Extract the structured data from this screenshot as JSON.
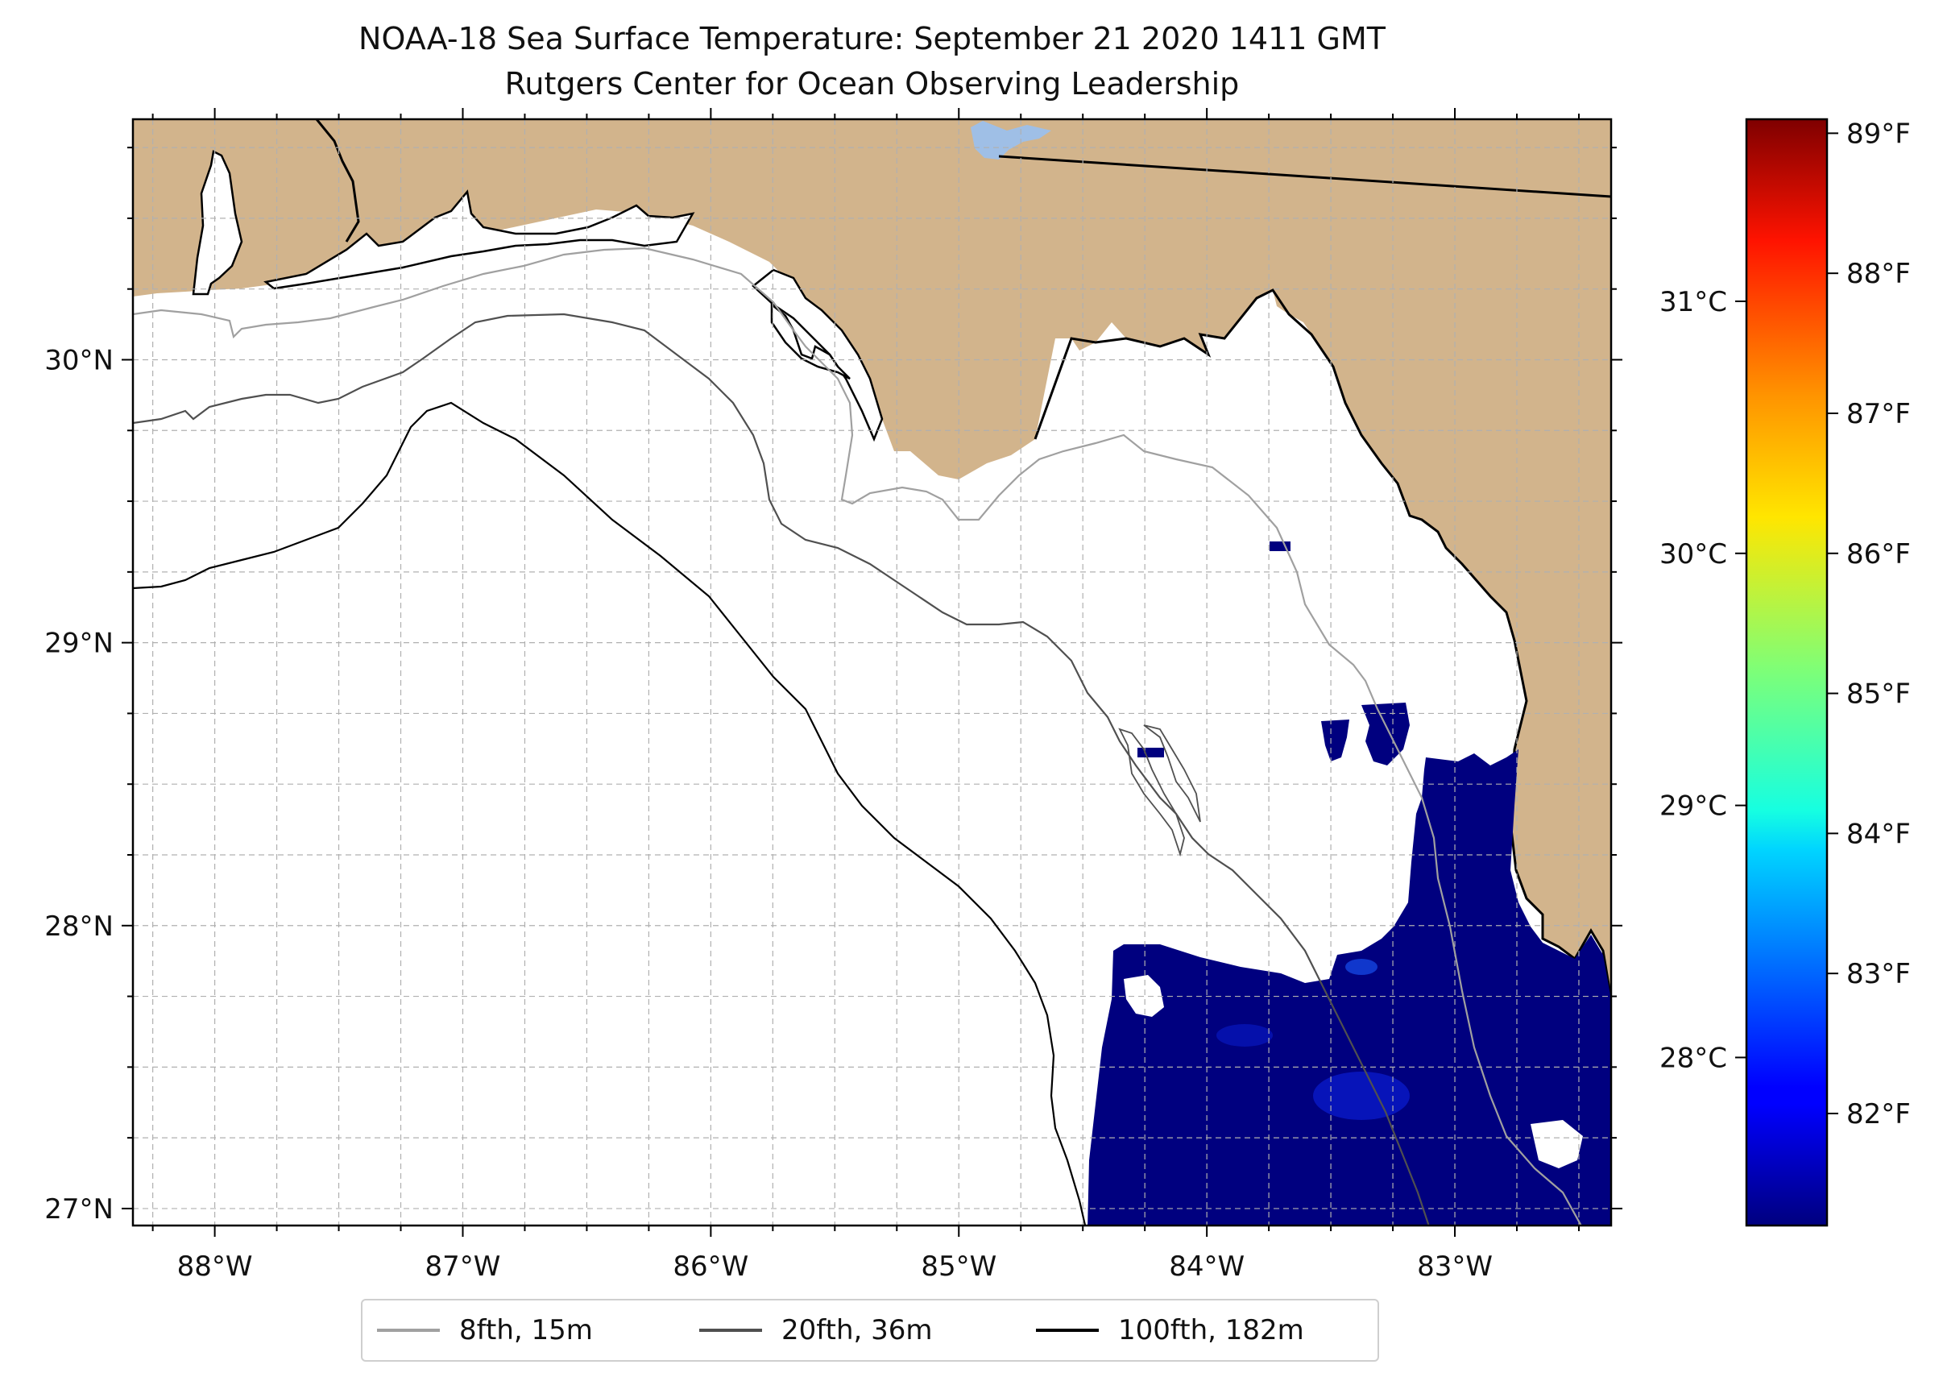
{
  "title": {
    "line1": "NOAA-18 Sea Surface Temperature: September 21 2020 1411 GMT",
    "line2": "Rutgers Center for Ocean Observing Leadership"
  },
  "map": {
    "lon_range": [
      -88.33,
      -82.37
    ],
    "lat_range": [
      26.94,
      30.85
    ],
    "land_color": "#D2B48C",
    "gridlines": true,
    "lon_ticks": [
      {
        "value": -88,
        "label": "88°W"
      },
      {
        "value": -87,
        "label": "87°W"
      },
      {
        "value": -86,
        "label": "86°W"
      },
      {
        "value": -85,
        "label": "85°W"
      },
      {
        "value": -84,
        "label": "84°W"
      },
      {
        "value": -83,
        "label": "83°W"
      }
    ],
    "lat_ticks": [
      {
        "value": 27,
        "label": "27°N"
      },
      {
        "value": 28,
        "label": "28°N"
      },
      {
        "value": 29,
        "label": "29°N"
      },
      {
        "value": 30,
        "label": "30°N"
      }
    ]
  },
  "colorbar": {
    "colormap": "jet",
    "range_f": [
      81.2,
      89.1
    ],
    "f_ticks": [
      {
        "value": 82,
        "label": "82°F"
      },
      {
        "value": 83,
        "label": "83°F"
      },
      {
        "value": 84,
        "label": "84°F"
      },
      {
        "value": 85,
        "label": "85°F"
      },
      {
        "value": 86,
        "label": "86°F"
      },
      {
        "value": 87,
        "label": "87°F"
      },
      {
        "value": 88,
        "label": "88°F"
      },
      {
        "value": 89,
        "label": "89°F"
      }
    ],
    "c_ticks": [
      {
        "value": 28,
        "label": "28°C"
      },
      {
        "value": 29,
        "label": "29°C"
      },
      {
        "value": 30,
        "label": "30°C"
      },
      {
        "value": 31,
        "label": "31°C"
      }
    ]
  },
  "legend": {
    "placement": "bottom-center",
    "items": [
      {
        "label": "8fth, 15m",
        "color": "#a0a0a0"
      },
      {
        "label": "20fth, 36m",
        "color": "#505050"
      },
      {
        "label": "100fth, 182m",
        "color": "#000000"
      }
    ]
  }
}
